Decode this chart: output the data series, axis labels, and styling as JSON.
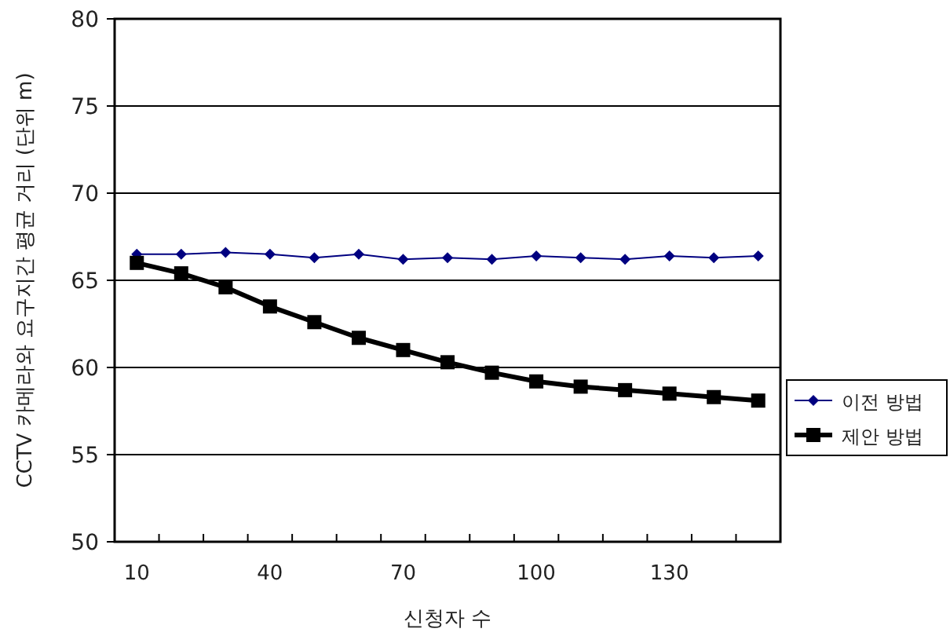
{
  "chart_data": {
    "type": "line",
    "xlabel": "신청자 수",
    "ylabel": "CCTV 카메라와 요구지간 평균 거리 (단위 m)",
    "categories": [
      "10",
      null,
      null,
      "40",
      null,
      null,
      "70",
      null,
      null,
      "100",
      null,
      null,
      "130",
      null,
      null
    ],
    "series": [
      {
        "name": "이전 방법",
        "color": "#000080",
        "marker": "diamond",
        "values": [
          66.5,
          66.5,
          66.6,
          66.5,
          66.3,
          66.5,
          66.2,
          66.3,
          66.2,
          66.4,
          66.3,
          66.2,
          66.4,
          66.3,
          66.4
        ]
      },
      {
        "name": "제안 방법",
        "color": "#000000",
        "marker": "square",
        "values": [
          66.0,
          65.4,
          64.6,
          63.5,
          62.6,
          61.7,
          61.0,
          60.3,
          59.7,
          59.2,
          58.9,
          58.7,
          58.5,
          58.3,
          58.1
        ]
      }
    ],
    "ylim": [
      50,
      80
    ],
    "yticks": [
      50,
      55,
      60,
      65,
      70,
      75,
      80
    ],
    "grid": "y",
    "legend": "right"
  }
}
